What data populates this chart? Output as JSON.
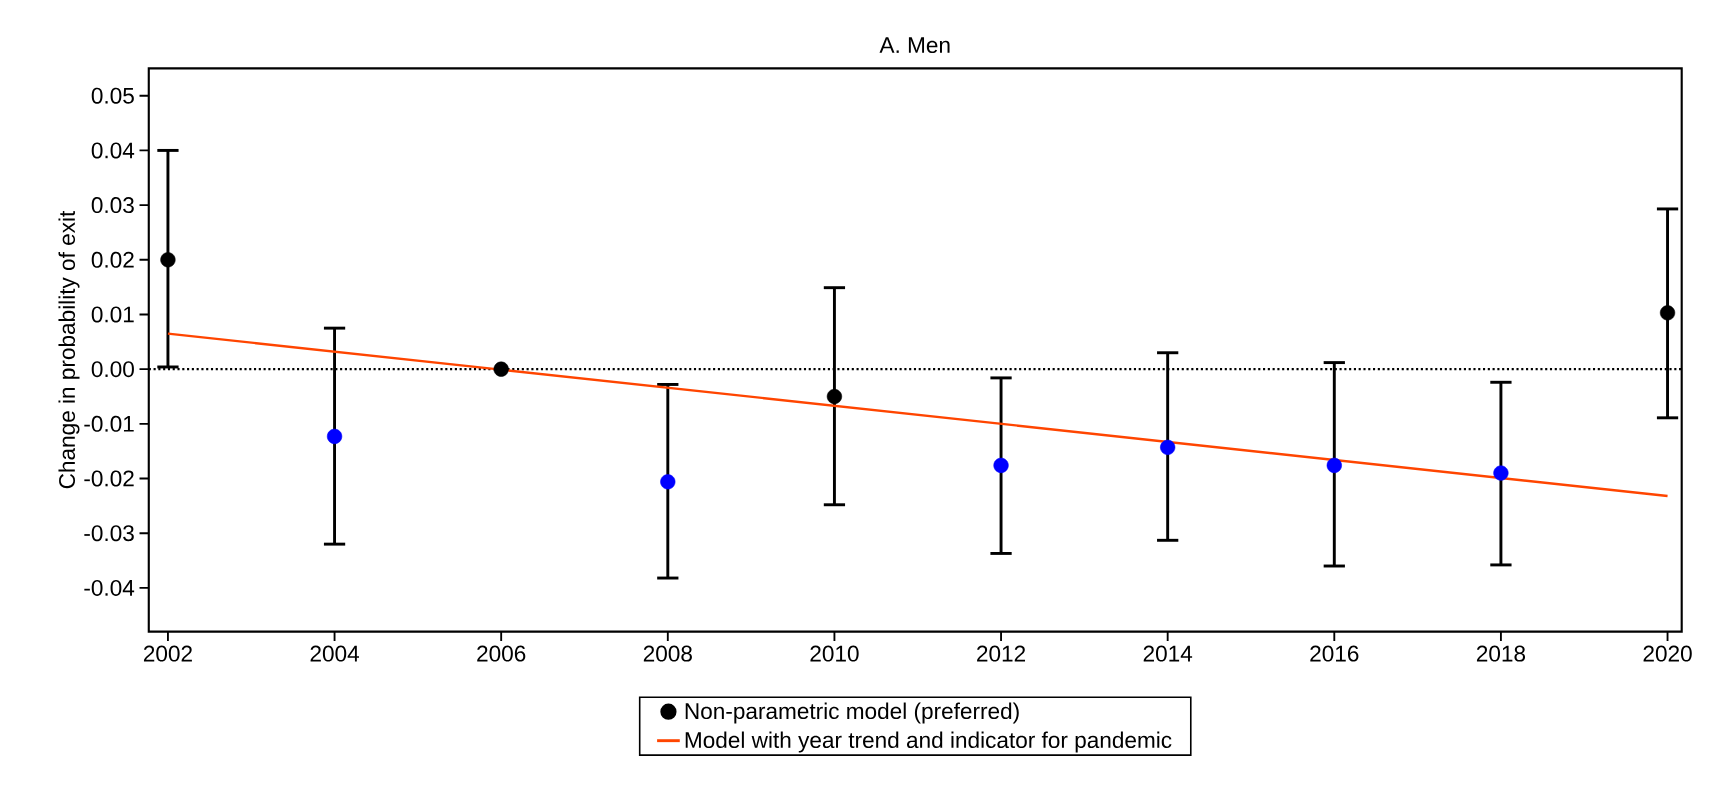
{
  "chart_data": {
    "type": "scatter",
    "title": "A. Men",
    "ylabel": "Change in probability of exit",
    "xlim": [
      2001.77,
      2020.17
    ],
    "ylim": [
      -0.048,
      0.055
    ],
    "xticks": [
      2002,
      2004,
      2006,
      2008,
      2010,
      2012,
      2014,
      2016,
      2018,
      2020
    ],
    "yticks": [
      -0.04,
      -0.03,
      -0.02,
      -0.01,
      {
        "value": 0,
        "label": "0.00"
      },
      0.01,
      0.02,
      0.03,
      0.04,
      0.05
    ],
    "grid": false,
    "legend": "bottom",
    "ref_lines": [
      {
        "axis": "y",
        "value": 0,
        "color": "#000000",
        "line_style": "dotted"
      }
    ],
    "series": [
      {
        "name": "Non-parametric model (preferred)",
        "color": "#000000",
        "colors": [
          "#000000",
          "#0000ff",
          "#000000",
          "#0000ff",
          "#000000",
          "#0000ff",
          "#0000ff",
          "#0000ff",
          "#0000ff",
          "#000000"
        ],
        "x": [
          2002,
          2004,
          2006,
          2008,
          2010,
          2012,
          2014,
          2016,
          2018,
          2020
        ],
        "values": [
          0.02,
          -0.0123,
          0.0,
          -0.0206,
          -0.005,
          -0.0176,
          -0.0143,
          -0.0176,
          -0.019,
          0.0103
        ],
        "errors": [
          [
            0.0004,
            0.04
          ],
          [
            -0.032,
            0.0075
          ],
          null,
          [
            -0.0382,
            -0.0028
          ],
          [
            -0.0248,
            0.0149
          ],
          [
            -0.0337,
            -0.0016
          ],
          [
            -0.0313,
            0.003
          ],
          [
            -0.036,
            0.0012
          ],
          [
            -0.0358,
            -0.0024
          ],
          [
            -0.0089,
            0.0293
          ]
        ]
      },
      {
        "name": "Model with year trend and indicator for pandemic",
        "type": "line",
        "color": "#ff4500",
        "x": [
          2002,
          2020
        ],
        "values": [
          0.0065,
          -0.0232
        ]
      }
    ]
  }
}
